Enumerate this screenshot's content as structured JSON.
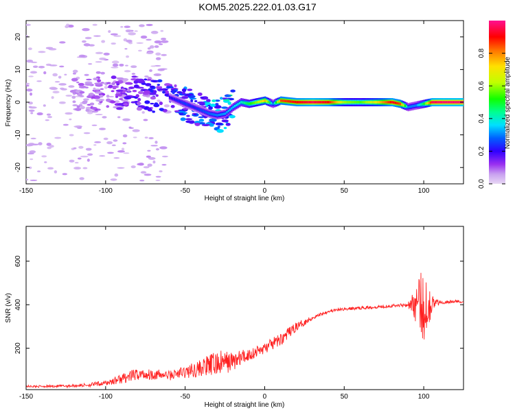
{
  "title": "KOM5.2025.222.01.03.G17",
  "chart_data": [
    {
      "type": "heatmap",
      "xlabel": "Height of straight line (km)",
      "ylabel": "Frequency (Hz)",
      "xlim": [
        -150,
        125
      ],
      "ylim": [
        -25,
        25
      ],
      "xticks": [
        -150,
        -100,
        -50,
        0,
        50,
        100
      ],
      "yticks": [
        -20,
        -10,
        0,
        10,
        20
      ],
      "grid": false,
      "colorbar": {
        "label": "Normalized spectral amplitude",
        "range": [
          0.0,
          1.0
        ],
        "ticks": [
          0.0,
          0.2,
          0.4,
          0.6,
          0.8
        ],
        "colormap": "rainbow-purple-to-red"
      },
      "ridge": {
        "x": [
          -150,
          -130,
          -110,
          -100,
          -90,
          -80,
          -70,
          -60,
          -50,
          -45,
          -40,
          -35,
          -30,
          -25,
          -20,
          -15,
          -10,
          -5,
          0,
          5,
          10,
          20,
          30,
          40,
          50,
          60,
          70,
          80,
          85,
          90,
          95,
          100,
          105,
          110,
          125
        ],
        "y": [
          3,
          2.5,
          2,
          3,
          2.5,
          3,
          2,
          1.5,
          -0.5,
          -1.5,
          -2.5,
          -3.5,
          -4,
          -3.5,
          -1.5,
          0,
          -0.5,
          0,
          0.5,
          -0.5,
          0.5,
          0,
          0,
          0,
          0,
          0,
          0,
          0,
          -0.5,
          -1.5,
          -1,
          -0.5,
          0,
          0,
          0
        ],
        "amplitude": [
          0.05,
          0.06,
          0.08,
          0.1,
          0.12,
          0.15,
          0.18,
          0.2,
          0.25,
          0.22,
          0.25,
          0.28,
          0.3,
          0.32,
          0.35,
          0.4,
          0.5,
          0.6,
          0.75,
          0.3,
          0.85,
          0.9,
          0.95,
          0.9,
          0.6,
          0.55,
          0.7,
          0.92,
          0.85,
          0.3,
          0.3,
          0.5,
          0.95,
          0.97,
          0.98
        ]
      },
      "noise_region": {
        "x_range": [
          -150,
          -60
        ],
        "y_range": [
          -24,
          24
        ],
        "amplitude": 0.05
      }
    },
    {
      "type": "line",
      "xlabel": "Height of straight line (km)",
      "ylabel": "SNR (v/v)",
      "xlim": [
        -150,
        125
      ],
      "ylim": [
        10,
        760
      ],
      "xticks": [
        -150,
        -100,
        -50,
        0,
        50,
        100
      ],
      "yticks": [
        200,
        400,
        600
      ],
      "color": "#ff2020",
      "series": [
        {
          "x": [
            -150,
            -140,
            -130,
            -120,
            -110,
            -100,
            -90,
            -80,
            -70,
            -60,
            -50,
            -40,
            -30,
            -20,
            -10,
            0,
            10,
            20,
            30,
            40,
            50,
            60,
            70,
            80,
            90,
            95,
            100,
            105,
            110,
            120,
            125
          ],
          "mean": [
            25,
            25,
            26,
            28,
            32,
            40,
            60,
            80,
            80,
            75,
            90,
            110,
            130,
            140,
            170,
            200,
            240,
            300,
            340,
            370,
            380,
            385,
            390,
            395,
            400,
            400,
            400,
            405,
            410,
            415,
            415
          ],
          "spread": [
            10,
            10,
            12,
            14,
            18,
            25,
            45,
            55,
            50,
            45,
            60,
            80,
            120,
            90,
            60,
            50,
            60,
            40,
            20,
            15,
            14,
            14,
            14,
            14,
            18,
            160,
            380,
            90,
            14,
            14,
            14
          ]
        }
      ]
    }
  ]
}
